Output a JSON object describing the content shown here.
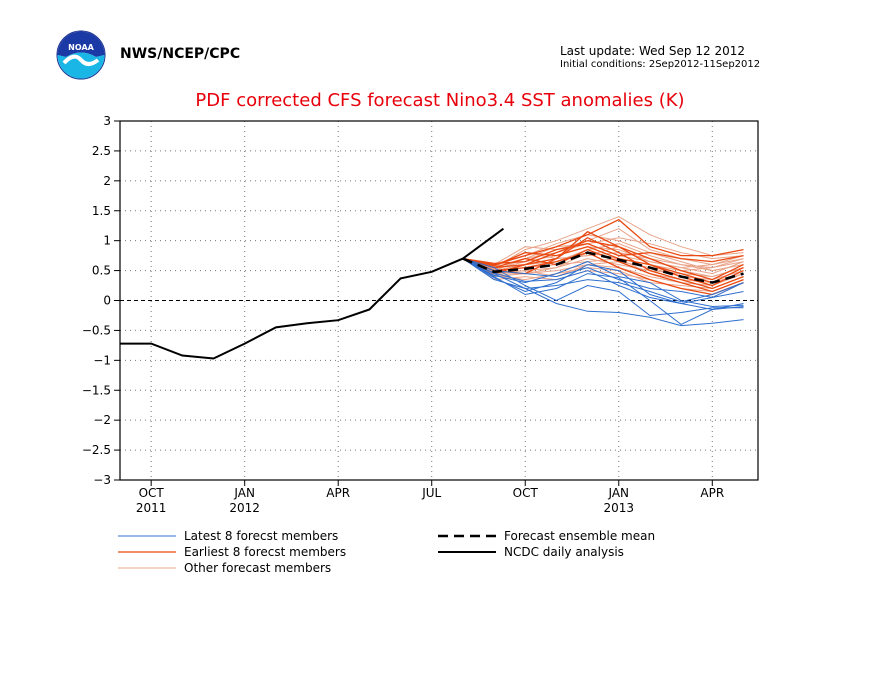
{
  "header": {
    "agency": "NWS/NCEP/CPC",
    "last_update": "Last update: Wed Sep 12 2012",
    "initial_conditions": "Initial conditions: 2Sep2012-11Sep2012",
    "logo_text": "NOAA"
  },
  "colors": {
    "latest": "#2f6fcf",
    "earliest": "#ea4a12",
    "other": "#e9a48a",
    "mean": "#000000",
    "analysis": "#000000",
    "title": "#e8000b"
  },
  "chart_data": {
    "type": "line",
    "title": "PDF corrected CFS forecast Nino3.4 SST anomalies (K)",
    "ylim": [
      -3,
      3
    ],
    "yticks": [
      3,
      2.5,
      2,
      1.5,
      1,
      0.5,
      0,
      -0.5,
      -1,
      -1.5,
      -2,
      -2.5,
      -3
    ],
    "xlim": [
      "2011-09",
      "2013-05-15"
    ],
    "xticks": [
      {
        "month": "2011-10",
        "label": "OCT",
        "year": "2011"
      },
      {
        "month": "2012-01",
        "label": "JAN",
        "year": "2012"
      },
      {
        "month": "2012-04",
        "label": "APR",
        "year": ""
      },
      {
        "month": "2012-07",
        "label": "JUL",
        "year": ""
      },
      {
        "month": "2012-10",
        "label": "OCT",
        "year": ""
      },
      {
        "month": "2013-01",
        "label": "JAN",
        "year": "2013"
      },
      {
        "month": "2013-04",
        "label": "APR",
        "year": ""
      }
    ],
    "grid": true,
    "zero_line": true,
    "analysis": {
      "name": "NCDC daily analysis",
      "x": [
        "2011-09",
        "2011-10",
        "2011-11",
        "2011-12",
        "2012-01",
        "2012-02",
        "2012-03",
        "2012-04",
        "2012-05",
        "2012-06",
        "2012-07",
        "2012-08",
        "2012-09-10"
      ],
      "y": [
        -0.72,
        -0.72,
        -0.92,
        -0.97,
        -0.72,
        -0.45,
        -0.38,
        -0.33,
        -0.15,
        0.37,
        0.48,
        0.7,
        1.2
      ]
    },
    "forecast_months": [
      "2012-08",
      "2012-09",
      "2012-10",
      "2012-11",
      "2012-12",
      "2013-01",
      "2013-02",
      "2013-03",
      "2013-04",
      "2013-05"
    ],
    "mean": {
      "name": "Forecast ensemble mean",
      "values": [
        0.7,
        0.48,
        0.53,
        0.6,
        0.8,
        0.68,
        0.55,
        0.4,
        0.3,
        0.45
      ]
    },
    "latest": {
      "name": "Latest 8 forecst members",
      "members": [
        [
          0.7,
          0.4,
          0.1,
          0.2,
          0.45,
          0.38,
          0.0,
          -0.4,
          -0.15,
          -0.05
        ],
        [
          0.7,
          0.45,
          0.2,
          -0.05,
          -0.18,
          -0.2,
          -0.28,
          -0.42,
          -0.38,
          -0.32
        ],
        [
          0.7,
          0.55,
          0.25,
          0.0,
          0.25,
          0.15,
          -0.25,
          -0.2,
          -0.12,
          -0.12
        ],
        [
          0.7,
          0.38,
          0.15,
          0.3,
          0.6,
          0.5,
          0.1,
          -0.05,
          0.05,
          0.3
        ],
        [
          0.7,
          0.42,
          0.3,
          0.45,
          0.65,
          0.4,
          0.3,
          0.0,
          -0.1,
          -0.08
        ],
        [
          0.7,
          0.35,
          0.2,
          0.25,
          0.35,
          0.3,
          0.15,
          -0.02,
          0.1,
          0.3
        ],
        [
          0.7,
          0.5,
          0.45,
          0.4,
          0.55,
          0.35,
          0.2,
          0.15,
          0.05,
          0.15
        ],
        [
          0.7,
          0.46,
          0.32,
          0.35,
          0.5,
          0.25,
          0.05,
          -0.05,
          -0.15,
          -0.1
        ]
      ]
    },
    "earliest": {
      "name": "Earliest 8 forecst members",
      "members": [
        [
          0.7,
          0.6,
          0.75,
          0.9,
          1.1,
          1.35,
          0.9,
          0.75,
          0.75,
          0.85
        ],
        [
          0.7,
          0.55,
          0.6,
          0.7,
          1.15,
          0.9,
          0.7,
          0.5,
          0.35,
          0.6
        ],
        [
          0.7,
          0.62,
          0.65,
          0.85,
          0.95,
          0.75,
          0.8,
          0.7,
          0.65,
          0.75
        ],
        [
          0.7,
          0.5,
          0.45,
          0.7,
          1.05,
          0.8,
          0.5,
          0.35,
          0.2,
          0.4
        ],
        [
          0.7,
          0.58,
          0.8,
          0.75,
          0.9,
          0.7,
          0.6,
          0.45,
          0.3,
          0.55
        ],
        [
          0.7,
          0.55,
          0.7,
          0.6,
          0.85,
          0.65,
          0.45,
          0.3,
          0.15,
          0.35
        ],
        [
          0.7,
          0.45,
          0.6,
          0.8,
          1.0,
          0.9,
          0.6,
          0.4,
          0.25,
          0.5
        ],
        [
          0.7,
          0.5,
          0.55,
          0.65,
          0.8,
          0.55,
          0.35,
          0.2,
          0.1,
          0.3
        ]
      ]
    },
    "other": {
      "name": "Other forecast members",
      "members": [
        [
          0.7,
          0.55,
          0.85,
          1.0,
          1.2,
          1.4,
          1.1,
          0.9,
          0.75,
          0.8
        ],
        [
          0.7,
          0.6,
          0.9,
          0.85,
          1.0,
          1.2,
          0.85,
          0.7,
          0.6,
          0.7
        ],
        [
          0.7,
          0.5,
          0.7,
          0.8,
          0.95,
          1.05,
          0.95,
          0.8,
          0.7,
          0.75
        ],
        [
          0.7,
          0.45,
          0.5,
          0.55,
          0.7,
          0.6,
          0.5,
          0.45,
          0.4,
          0.55
        ],
        [
          0.7,
          0.4,
          0.45,
          0.5,
          0.6,
          0.55,
          0.4,
          0.3,
          0.25,
          0.45
        ],
        [
          0.7,
          0.55,
          0.6,
          0.7,
          0.75,
          0.8,
          0.7,
          0.6,
          0.5,
          0.6
        ],
        [
          0.7,
          0.35,
          0.4,
          0.35,
          0.5,
          0.45,
          0.35,
          0.2,
          0.15,
          0.35
        ],
        [
          0.7,
          0.52,
          0.65,
          0.75,
          0.9,
          0.85,
          0.65,
          0.55,
          0.45,
          0.65
        ],
        [
          0.7,
          0.48,
          0.55,
          0.6,
          0.65,
          0.7,
          0.6,
          0.5,
          0.55,
          0.7
        ],
        [
          0.7,
          0.58,
          0.75,
          0.95,
          1.1,
          1.0,
          0.8,
          0.65,
          0.5,
          0.6
        ],
        [
          0.7,
          0.42,
          0.35,
          0.45,
          0.55,
          0.5,
          0.3,
          0.25,
          0.2,
          0.4
        ],
        [
          0.7,
          0.5,
          0.6,
          0.65,
          0.85,
          0.95,
          0.75,
          0.6,
          0.55,
          0.65
        ],
        [
          0.7,
          0.46,
          0.5,
          0.4,
          0.6,
          0.65,
          0.55,
          0.4,
          0.35,
          0.5
        ],
        [
          0.7,
          0.54,
          0.7,
          0.9,
          0.95,
          0.75,
          0.65,
          0.55,
          0.6,
          0.75
        ],
        [
          0.7,
          0.44,
          0.45,
          0.55,
          0.8,
          0.7,
          0.45,
          0.35,
          0.3,
          0.45
        ],
        [
          0.7,
          0.56,
          0.8,
          0.7,
          0.75,
          0.9,
          0.7,
          0.5,
          0.4,
          0.55
        ]
      ]
    }
  }
}
